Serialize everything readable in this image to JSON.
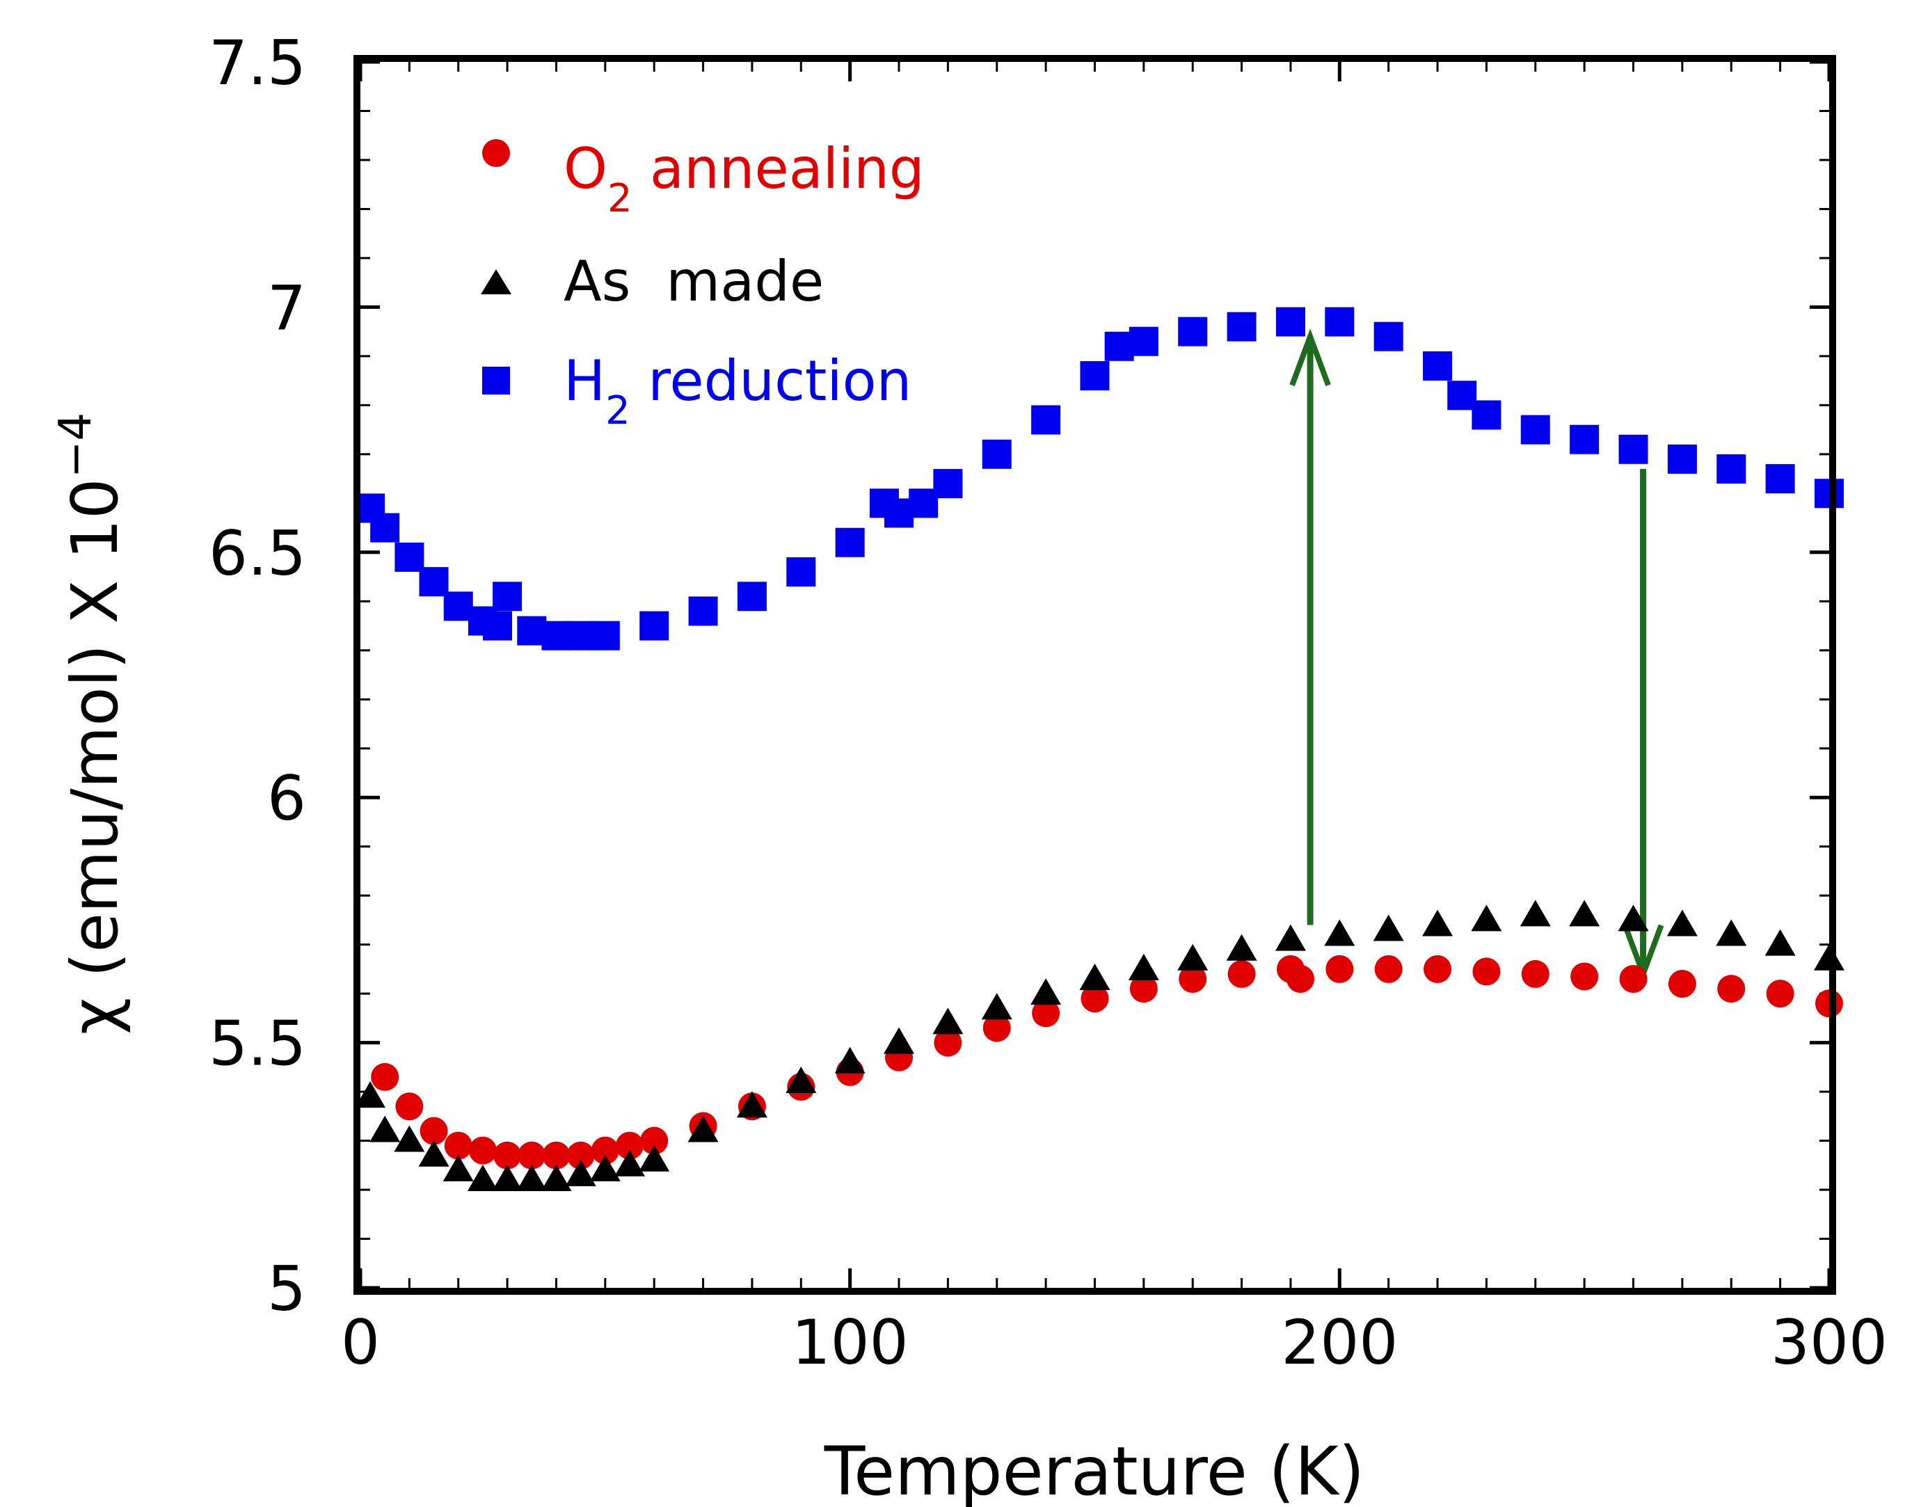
{
  "chart_data": {
    "type": "scatter",
    "title": "",
    "xlabel": "Temperature (K)",
    "ylabel": "χ (emu/mol) X 10",
    "ylabel_exponent": "−4",
    "xlim": [
      0,
      300
    ],
    "ylim": [
      5,
      7.5
    ],
    "x_ticks": [
      0,
      100,
      200,
      300
    ],
    "x_tick_labels": [
      "0",
      "100",
      "200",
      "300"
    ],
    "y_ticks": [
      5,
      5.5,
      6,
      6.5,
      7,
      7.5
    ],
    "y_tick_labels": [
      "5",
      "5.5",
      "6",
      "6.5",
      "7",
      "7.5"
    ],
    "grid": false,
    "legend_position": "top-left",
    "series": [
      {
        "name": "O2 annealing",
        "legend_main": "O",
        "legend_sub": "2",
        "legend_rest": " annealing",
        "marker": "circle",
        "color": "#e00000",
        "x": [
          5,
          10,
          15,
          20,
          25,
          30,
          35,
          40,
          45,
          50,
          55,
          60,
          70,
          80,
          90,
          100,
          110,
          120,
          130,
          140,
          150,
          160,
          170,
          180,
          190,
          192,
          200,
          210,
          220,
          230,
          240,
          250,
          260,
          270,
          280,
          290,
          300
        ],
        "y": [
          5.43,
          5.37,
          5.32,
          5.29,
          5.28,
          5.27,
          5.27,
          5.27,
          5.27,
          5.28,
          5.29,
          5.3,
          5.33,
          5.37,
          5.41,
          5.44,
          5.47,
          5.5,
          5.53,
          5.56,
          5.59,
          5.61,
          5.63,
          5.64,
          5.65,
          5.63,
          5.65,
          5.65,
          5.65,
          5.645,
          5.64,
          5.635,
          5.63,
          5.62,
          5.61,
          5.6,
          5.58
        ]
      },
      {
        "name": "As made",
        "legend_main": "As  made",
        "legend_sub": "",
        "legend_rest": "",
        "marker": "triangle",
        "color": "#000000",
        "x": [
          2,
          5,
          10,
          15,
          20,
          25,
          30,
          35,
          40,
          45,
          50,
          55,
          60,
          70,
          80,
          90,
          100,
          110,
          120,
          130,
          140,
          150,
          160,
          170,
          180,
          190,
          200,
          210,
          220,
          230,
          240,
          250,
          260,
          270,
          280,
          290,
          300
        ],
        "y": [
          5.39,
          5.32,
          5.3,
          5.27,
          5.24,
          5.22,
          5.22,
          5.22,
          5.22,
          5.23,
          5.24,
          5.25,
          5.26,
          5.32,
          5.37,
          5.42,
          5.46,
          5.5,
          5.54,
          5.57,
          5.6,
          5.63,
          5.65,
          5.67,
          5.69,
          5.71,
          5.72,
          5.73,
          5.74,
          5.75,
          5.76,
          5.76,
          5.75,
          5.74,
          5.72,
          5.7,
          5.67
        ]
      },
      {
        "name": "H2 reduction",
        "legend_main": "H",
        "legend_sub": "2",
        "legend_rest": " reduction",
        "marker": "square",
        "color": "#0000f0",
        "x": [
          2,
          5,
          10,
          15,
          20,
          25,
          28,
          30,
          35,
          40,
          45,
          50,
          60,
          70,
          80,
          90,
          100,
          107,
          110,
          115,
          120,
          130,
          140,
          150,
          155,
          160,
          170,
          180,
          190,
          200,
          210,
          220,
          225,
          230,
          240,
          250,
          260,
          270,
          280,
          290,
          300
        ],
        "y": [
          6.59,
          6.55,
          6.49,
          6.44,
          6.39,
          6.36,
          6.35,
          6.41,
          6.34,
          6.33,
          6.33,
          6.33,
          6.35,
          6.38,
          6.41,
          6.46,
          6.52,
          6.6,
          6.58,
          6.6,
          6.64,
          6.7,
          6.77,
          6.86,
          6.92,
          6.93,
          6.95,
          6.96,
          6.97,
          6.97,
          6.94,
          6.88,
          6.82,
          6.78,
          6.75,
          6.73,
          6.71,
          6.69,
          6.67,
          6.65,
          6.62
        ]
      }
    ],
    "annotations": [
      {
        "type": "arrow",
        "direction": "up",
        "x": 194,
        "y_from": 5.74,
        "y_to": 6.94,
        "color": "#1e6b1e"
      },
      {
        "type": "arrow",
        "direction": "down",
        "x": 262,
        "y_from": 6.67,
        "y_to": 5.64,
        "color": "#1e6b1e"
      }
    ]
  }
}
